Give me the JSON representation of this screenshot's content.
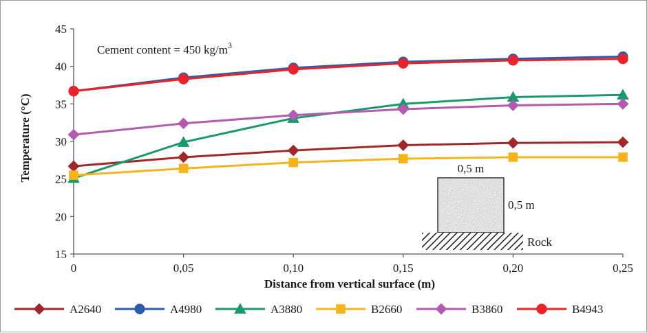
{
  "chart_data": {
    "type": "line",
    "xlabel": "Distance from vertical surface (m)",
    "ylabel": "Temperature (°C)",
    "annotation": "Cement content = 450 kg/m",
    "annotation_sup": "3",
    "xlim": [
      0,
      0.25
    ],
    "ylim": [
      15,
      45
    ],
    "x": [
      0,
      0.05,
      0.1,
      0.15,
      0.2,
      0.25
    ],
    "x_tick_labels": [
      "0",
      "0,05",
      "0,10",
      "0,15",
      "0,20",
      "0,25"
    ],
    "y_ticks": [
      15,
      20,
      25,
      30,
      35,
      40,
      45
    ],
    "y_tick_labels": [
      "15",
      "20",
      "25",
      "30",
      "35",
      "40",
      "45"
    ],
    "grid": false,
    "legend_position": "bottom",
    "series": [
      {
        "name": "A2640",
        "color": "#a1282a",
        "marker": "diamond",
        "values": [
          26.7,
          27.9,
          28.8,
          29.5,
          29.8,
          29.9
        ]
      },
      {
        "name": "A4980",
        "color": "#2e5caa",
        "marker": "circle",
        "values": [
          36.7,
          38.5,
          39.8,
          40.6,
          41.0,
          41.3
        ]
      },
      {
        "name": "A3880",
        "color": "#1a9a6a",
        "marker": "triangle",
        "values": [
          25.1,
          29.9,
          33.1,
          35.0,
          35.9,
          36.2
        ]
      },
      {
        "name": "B2660",
        "color": "#f4b41a",
        "marker": "square",
        "values": [
          25.5,
          26.4,
          27.2,
          27.7,
          27.9,
          27.9
        ]
      },
      {
        "name": "B3860",
        "color": "#b45ab0",
        "marker": "diamond",
        "values": [
          30.9,
          32.4,
          33.5,
          34.3,
          34.8,
          35.0
        ]
      },
      {
        "name": "B4943",
        "color": "#e8242a",
        "marker": "circle",
        "values": [
          36.7,
          38.3,
          39.6,
          40.4,
          40.8,
          41.0
        ]
      }
    ],
    "inset": {
      "width_label": "0,5 m",
      "height_label": "0,5 m",
      "base_label": "Rock"
    }
  }
}
